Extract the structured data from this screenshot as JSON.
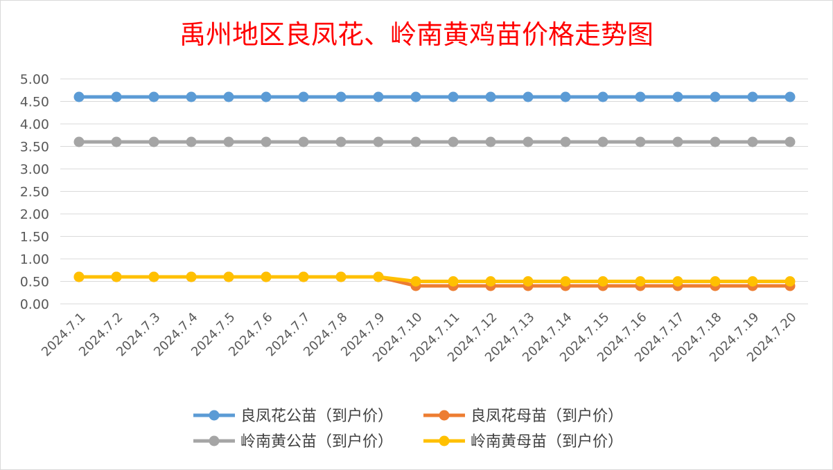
{
  "chart_data": {
    "type": "line",
    "title": "禹州地区良凤花、岭南黄鸡苗价格走势图",
    "xlabel": "",
    "ylabel": "",
    "categories": [
      "2024.7.1",
      "2024.7.2",
      "2024.7.3",
      "2024.7.4",
      "2024.7.5",
      "2024.7.6",
      "2024.7.7",
      "2024.7.8",
      "2024.7.9",
      "2024.7.10",
      "2024.7.11",
      "2024.7.12",
      "2024.7.13",
      "2024.7.14",
      "2024.7.15",
      "2024.7.16",
      "2024.7.17",
      "2024.7.18",
      "2024.7.19",
      "2024.7.20"
    ],
    "y_ticks": [
      "0.00",
      "0.50",
      "1.00",
      "1.50",
      "2.00",
      "2.50",
      "3.00",
      "3.50",
      "4.00",
      "4.50",
      "5.00"
    ],
    "ylim": [
      0,
      5
    ],
    "grid": true,
    "legend_position": "bottom",
    "title_color": "#ff0000",
    "series": [
      {
        "name": "良凤花公苗（到户价）",
        "color": "#5b9bd5",
        "values": [
          4.6,
          4.6,
          4.6,
          4.6,
          4.6,
          4.6,
          4.6,
          4.6,
          4.6,
          4.6,
          4.6,
          4.6,
          4.6,
          4.6,
          4.6,
          4.6,
          4.6,
          4.6,
          4.6,
          4.6
        ]
      },
      {
        "name": "良凤花母苗（到户价）",
        "color": "#ed7d31",
        "values": [
          0.6,
          0.6,
          0.6,
          0.6,
          0.6,
          0.6,
          0.6,
          0.6,
          0.6,
          0.4,
          0.4,
          0.4,
          0.4,
          0.4,
          0.4,
          0.4,
          0.4,
          0.4,
          0.4,
          0.4
        ]
      },
      {
        "name": "岭南黄公苗（到户价）",
        "color": "#a5a5a5",
        "values": [
          3.6,
          3.6,
          3.6,
          3.6,
          3.6,
          3.6,
          3.6,
          3.6,
          3.6,
          3.6,
          3.6,
          3.6,
          3.6,
          3.6,
          3.6,
          3.6,
          3.6,
          3.6,
          3.6,
          3.6
        ]
      },
      {
        "name": "岭南黄母苗（到户价）",
        "color": "#ffc000",
        "values": [
          0.6,
          0.6,
          0.6,
          0.6,
          0.6,
          0.6,
          0.6,
          0.6,
          0.6,
          0.5,
          0.5,
          0.5,
          0.5,
          0.5,
          0.5,
          0.5,
          0.5,
          0.5,
          0.5,
          0.5
        ]
      }
    ]
  }
}
